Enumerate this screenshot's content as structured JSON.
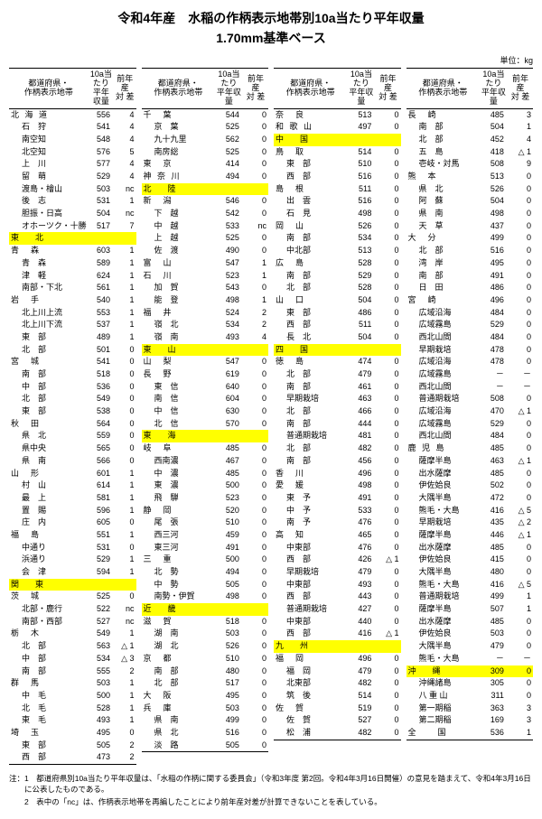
{
  "title": "令和4年産　水稲の作柄表示地帯別10a当たり平年収量",
  "subtitle": "1.70mm基準ベース",
  "unit": "単位：kg",
  "header": {
    "name": "都道府県・\n作柄表示地帯",
    "yield": "10a当たり\n平年収量",
    "diff": "前年産\n対 差"
  },
  "columns": [
    [
      {
        "n": "北 海 道",
        "y": "556",
        "d": "4",
        "pref": 1
      },
      {
        "n": "石　狩",
        "y": "541",
        "d": "4",
        "i": 1
      },
      {
        "n": "南空知",
        "y": "548",
        "d": "4",
        "i": 1
      },
      {
        "n": "北空知",
        "y": "576",
        "d": "5",
        "i": 1
      },
      {
        "n": "上　川",
        "y": "577",
        "d": "4",
        "i": 1
      },
      {
        "n": "留　萌",
        "y": "529",
        "d": "4",
        "i": 1
      },
      {
        "n": "渡島・檜山",
        "y": "503",
        "d": "nc",
        "i": 1
      },
      {
        "n": "後　志",
        "y": "531",
        "d": "1",
        "i": 1
      },
      {
        "n": "胆振・日高",
        "y": "504",
        "d": "nc",
        "i": 1
      },
      {
        "n": "オホーツク・十勝",
        "y": "517",
        "d": "7",
        "i": 1
      },
      {
        "n": "東　　北",
        "y": "",
        "d": "",
        "hl": 1
      },
      {
        "n": "青　森",
        "y": "603",
        "d": "1",
        "pref": 1
      },
      {
        "n": "青　森",
        "y": "589",
        "d": "1",
        "i": 1
      },
      {
        "n": "津　軽",
        "y": "624",
        "d": "1",
        "i": 1
      },
      {
        "n": "南部・下北",
        "y": "561",
        "d": "1",
        "i": 1
      },
      {
        "n": "岩　手",
        "y": "540",
        "d": "1",
        "pref": 1
      },
      {
        "n": "北上川上流",
        "y": "553",
        "d": "1",
        "i": 1
      },
      {
        "n": "北上川下流",
        "y": "537",
        "d": "1",
        "i": 1
      },
      {
        "n": "東　部",
        "y": "489",
        "d": "1",
        "i": 1
      },
      {
        "n": "北　部",
        "y": "501",
        "d": "0",
        "i": 1
      },
      {
        "n": "宮　城",
        "y": "541",
        "d": "0",
        "pref": 1
      },
      {
        "n": "南　部",
        "y": "518",
        "d": "0",
        "i": 1
      },
      {
        "n": "中　部",
        "y": "536",
        "d": "0",
        "i": 1
      },
      {
        "n": "北　部",
        "y": "549",
        "d": "0",
        "i": 1
      },
      {
        "n": "東　部",
        "y": "538",
        "d": "0",
        "i": 1
      },
      {
        "n": "秋　田",
        "y": "564",
        "d": "0",
        "pref": 1
      },
      {
        "n": "県　北",
        "y": "559",
        "d": "0",
        "i": 1
      },
      {
        "n": "県中央",
        "y": "565",
        "d": "0",
        "i": 1
      },
      {
        "n": "県　南",
        "y": "566",
        "d": "0",
        "i": 1
      },
      {
        "n": "山　形",
        "y": "601",
        "d": "1",
        "pref": 1
      },
      {
        "n": "村　山",
        "y": "614",
        "d": "1",
        "i": 1
      },
      {
        "n": "最　上",
        "y": "581",
        "d": "1",
        "i": 1
      },
      {
        "n": "置　賜",
        "y": "596",
        "d": "1",
        "i": 1
      },
      {
        "n": "庄　内",
        "y": "605",
        "d": "0",
        "i": 1
      },
      {
        "n": "福　島",
        "y": "551",
        "d": "1",
        "pref": 1
      },
      {
        "n": "中通り",
        "y": "531",
        "d": "0",
        "i": 1
      },
      {
        "n": "浜通り",
        "y": "529",
        "d": "1",
        "i": 1
      },
      {
        "n": "会　津",
        "y": "594",
        "d": "1",
        "i": 1
      },
      {
        "n": "関　　東",
        "y": "",
        "d": "",
        "hl": 1
      },
      {
        "n": "茨　城",
        "y": "525",
        "d": "0",
        "pref": 1
      },
      {
        "n": "北部・鹿行",
        "y": "522",
        "d": "nc",
        "i": 1
      },
      {
        "n": "南部・西部",
        "y": "527",
        "d": "nc",
        "i": 1
      },
      {
        "n": "栃　木",
        "y": "549",
        "d": "1",
        "pref": 1
      },
      {
        "n": "北　部",
        "y": "563",
        "d": "△ 1",
        "i": 1
      },
      {
        "n": "中　部",
        "y": "534",
        "d": "△ 3",
        "i": 1
      },
      {
        "n": "南　部",
        "y": "555",
        "d": "2",
        "i": 1
      },
      {
        "n": "群　馬",
        "y": "503",
        "d": "1",
        "pref": 1
      },
      {
        "n": "中　毛",
        "y": "500",
        "d": "1",
        "i": 1
      },
      {
        "n": "北　毛",
        "y": "528",
        "d": "1",
        "i": 1
      },
      {
        "n": "東　毛",
        "y": "493",
        "d": "1",
        "i": 1
      },
      {
        "n": "埼　玉",
        "y": "495",
        "d": "0",
        "pref": 1
      },
      {
        "n": "東　部",
        "y": "505",
        "d": "2",
        "i": 1
      },
      {
        "n": "西　部",
        "y": "473",
        "d": "2",
        "i": 1,
        "last": 1
      }
    ],
    [
      {
        "n": "千　葉",
        "y": "544",
        "d": "0",
        "pref": 1
      },
      {
        "n": "京　葉",
        "y": "525",
        "d": "0",
        "i": 1
      },
      {
        "n": "九十九里",
        "y": "562",
        "d": "0",
        "i": 1
      },
      {
        "n": "南房総",
        "y": "525",
        "d": "0",
        "i": 1
      },
      {
        "n": "東　京",
        "y": "414",
        "d": "0",
        "pref": 1
      },
      {
        "n": "神 奈 川",
        "y": "494",
        "d": "0",
        "pref": 1
      },
      {
        "n": "北　　陸",
        "y": "",
        "d": "",
        "hl": 1
      },
      {
        "n": "新　潟",
        "y": "546",
        "d": "0",
        "pref": 1
      },
      {
        "n": "下　越",
        "y": "542",
        "d": "0",
        "i": 1
      },
      {
        "n": "中　越",
        "y": "533",
        "d": "nc",
        "i": 1
      },
      {
        "n": "上　越",
        "y": "525",
        "d": "0",
        "i": 1
      },
      {
        "n": "佐　渡",
        "y": "490",
        "d": "0",
        "i": 1
      },
      {
        "n": "富　山",
        "y": "547",
        "d": "1",
        "pref": 1
      },
      {
        "n": "石　川",
        "y": "523",
        "d": "1",
        "pref": 1
      },
      {
        "n": "加　賀",
        "y": "543",
        "d": "0",
        "i": 1
      },
      {
        "n": "能　登",
        "y": "498",
        "d": "1",
        "i": 1
      },
      {
        "n": "福　井",
        "y": "524",
        "d": "2",
        "pref": 1
      },
      {
        "n": "嶺　北",
        "y": "534",
        "d": "2",
        "i": 1
      },
      {
        "n": "嶺　南",
        "y": "493",
        "d": "4",
        "i": 1
      },
      {
        "n": "東　　山",
        "y": "",
        "d": "",
        "hl": 1
      },
      {
        "n": "山　梨",
        "y": "547",
        "d": "0",
        "pref": 1
      },
      {
        "n": "長　野",
        "y": "619",
        "d": "0",
        "pref": 1
      },
      {
        "n": "東　信",
        "y": "640",
        "d": "0",
        "i": 1
      },
      {
        "n": "南　信",
        "y": "604",
        "d": "0",
        "i": 1
      },
      {
        "n": "中　信",
        "y": "630",
        "d": "0",
        "i": 1
      },
      {
        "n": "北　信",
        "y": "570",
        "d": "0",
        "i": 1
      },
      {
        "n": "東　　海",
        "y": "",
        "d": "",
        "hl": 1
      },
      {
        "n": "岐　阜",
        "y": "485",
        "d": "0",
        "pref": 1
      },
      {
        "n": "西南濃",
        "y": "467",
        "d": "0",
        "i": 1
      },
      {
        "n": "中　濃",
        "y": "485",
        "d": "0",
        "i": 1
      },
      {
        "n": "東　濃",
        "y": "500",
        "d": "0",
        "i": 1
      },
      {
        "n": "飛　騨",
        "y": "523",
        "d": "0",
        "i": 1
      },
      {
        "n": "静　岡",
        "y": "520",
        "d": "0",
        "pref": 1
      },
      {
        "n": "尾　張",
        "y": "510",
        "d": "0",
        "i": 1
      },
      {
        "n": "西三河",
        "y": "459",
        "d": "0",
        "i": 1
      },
      {
        "n": "東三河",
        "y": "491",
        "d": "0",
        "i": 1
      },
      {
        "n": "三　重",
        "y": "500",
        "d": "0",
        "pref": 1
      },
      {
        "n": "北　勢",
        "y": "494",
        "d": "0",
        "i": 1
      },
      {
        "n": "中　勢",
        "y": "505",
        "d": "0",
        "i": 1
      },
      {
        "n": "南勢・伊賀",
        "y": "498",
        "d": "0",
        "i": 1
      },
      {
        "n": "近　　畿",
        "y": "",
        "d": "",
        "hl": 1
      },
      {
        "n": "滋　賀",
        "y": "518",
        "d": "0",
        "pref": 1
      },
      {
        "n": "湖　南",
        "y": "503",
        "d": "0",
        "i": 1
      },
      {
        "n": "湖　北",
        "y": "526",
        "d": "0",
        "i": 1
      },
      {
        "n": "京　都",
        "y": "510",
        "d": "0",
        "pref": 1
      },
      {
        "n": "南　部",
        "y": "480",
        "d": "0",
        "i": 1
      },
      {
        "n": "北　部",
        "y": "517",
        "d": "0",
        "i": 1
      },
      {
        "n": "大　阪",
        "y": "495",
        "d": "0",
        "pref": 1
      },
      {
        "n": "兵　庫",
        "y": "503",
        "d": "0",
        "pref": 1
      },
      {
        "n": "県　南",
        "y": "499",
        "d": "0",
        "i": 1
      },
      {
        "n": "県　北",
        "y": "516",
        "d": "0",
        "i": 1
      },
      {
        "n": "淡　路",
        "y": "505",
        "d": "0",
        "i": 1,
        "last": 1
      }
    ],
    [
      {
        "n": "奈　良",
        "y": "513",
        "d": "0",
        "pref": 1
      },
      {
        "n": "和 歌 山",
        "y": "497",
        "d": "0",
        "pref": 1
      },
      {
        "n": "中　　国",
        "y": "",
        "d": "",
        "hl": 1
      },
      {
        "n": "鳥　取",
        "y": "514",
        "d": "0",
        "pref": 1
      },
      {
        "n": "東　部",
        "y": "510",
        "d": "0",
        "i": 1
      },
      {
        "n": "西　部",
        "y": "516",
        "d": "0",
        "i": 1
      },
      {
        "n": "島　根",
        "y": "511",
        "d": "0",
        "pref": 1
      },
      {
        "n": "出　雲",
        "y": "516",
        "d": "0",
        "i": 1
      },
      {
        "n": "石　見",
        "y": "498",
        "d": "0",
        "i": 1
      },
      {
        "n": "岡　山",
        "y": "526",
        "d": "0",
        "pref": 1
      },
      {
        "n": "南　部",
        "y": "534",
        "d": "0",
        "i": 1
      },
      {
        "n": "中北部",
        "y": "513",
        "d": "0",
        "i": 1
      },
      {
        "n": "広　島",
        "y": "528",
        "d": "0",
        "pref": 1
      },
      {
        "n": "南　部",
        "y": "529",
        "d": "0",
        "i": 1
      },
      {
        "n": "北　部",
        "y": "528",
        "d": "0",
        "i": 1
      },
      {
        "n": "山　口",
        "y": "504",
        "d": "0",
        "pref": 1
      },
      {
        "n": "東　部",
        "y": "486",
        "d": "0",
        "i": 1
      },
      {
        "n": "西　部",
        "y": "511",
        "d": "0",
        "i": 1
      },
      {
        "n": "長　北",
        "y": "504",
        "d": "0",
        "i": 1
      },
      {
        "n": "四　　国",
        "y": "",
        "d": "",
        "hl": 1
      },
      {
        "n": "徳　島",
        "y": "474",
        "d": "0",
        "pref": 1
      },
      {
        "n": "北　部",
        "y": "479",
        "d": "0",
        "i": 1
      },
      {
        "n": "南　部",
        "y": "461",
        "d": "0",
        "i": 1
      },
      {
        "n": "早期栽培",
        "y": "463",
        "d": "0",
        "i": 1
      },
      {
        "n": "北　部",
        "y": "466",
        "d": "0",
        "i": 1
      },
      {
        "n": "南　部",
        "y": "444",
        "d": "0",
        "i": 1
      },
      {
        "n": "普通期栽培",
        "y": "481",
        "d": "0",
        "i": 1
      },
      {
        "n": "北　部",
        "y": "482",
        "d": "0",
        "i": 1
      },
      {
        "n": "南　部",
        "y": "456",
        "d": "0",
        "i": 1
      },
      {
        "n": "香　川",
        "y": "496",
        "d": "0",
        "pref": 1
      },
      {
        "n": "愛　媛",
        "y": "498",
        "d": "0",
        "pref": 1
      },
      {
        "n": "東　予",
        "y": "491",
        "d": "0",
        "i": 1
      },
      {
        "n": "中　予",
        "y": "533",
        "d": "0",
        "i": 1
      },
      {
        "n": "南　予",
        "y": "476",
        "d": "0",
        "i": 1
      },
      {
        "n": "高　知",
        "y": "465",
        "d": "0",
        "pref": 1
      },
      {
        "n": "中東部",
        "y": "476",
        "d": "0",
        "i": 1
      },
      {
        "n": "西　部",
        "y": "426",
        "d": "△ 1",
        "i": 1
      },
      {
        "n": "早期栽培",
        "y": "479",
        "d": "0",
        "i": 1
      },
      {
        "n": "中東部",
        "y": "493",
        "d": "0",
        "i": 1
      },
      {
        "n": "西　部",
        "y": "443",
        "d": "0",
        "i": 1
      },
      {
        "n": "普通期栽培",
        "y": "427",
        "d": "0",
        "i": 1
      },
      {
        "n": "中東部",
        "y": "440",
        "d": "0",
        "i": 1
      },
      {
        "n": "西　部",
        "y": "416",
        "d": "△ 1",
        "i": 1
      },
      {
        "n": "九　　州",
        "y": "",
        "d": "",
        "hl": 1
      },
      {
        "n": "福　岡",
        "y": "496",
        "d": "0",
        "pref": 1
      },
      {
        "n": "福　岡",
        "y": "479",
        "d": "0",
        "i": 1
      },
      {
        "n": "北東部",
        "y": "482",
        "d": "0",
        "i": 1
      },
      {
        "n": "筑　後",
        "y": "514",
        "d": "0",
        "i": 1
      },
      {
        "n": "佐　賀",
        "y": "519",
        "d": "0",
        "pref": 1
      },
      {
        "n": "佐　賀",
        "y": "527",
        "d": "0",
        "i": 1
      },
      {
        "n": "松　浦",
        "y": "482",
        "d": "0",
        "i": 1,
        "last": 1
      }
    ],
    [
      {
        "n": "長　崎",
        "y": "485",
        "d": "3",
        "pref": 1
      },
      {
        "n": "南　部",
        "y": "504",
        "d": "1",
        "i": 1
      },
      {
        "n": "北　部",
        "y": "452",
        "d": "4",
        "i": 1
      },
      {
        "n": "五　島",
        "y": "418",
        "d": "△ 1",
        "i": 1
      },
      {
        "n": "壱岐・対馬",
        "y": "508",
        "d": "9",
        "i": 1
      },
      {
        "n": "熊　本",
        "y": "513",
        "d": "0",
        "pref": 1
      },
      {
        "n": "県　北",
        "y": "526",
        "d": "0",
        "i": 1
      },
      {
        "n": "阿　蘇",
        "y": "504",
        "d": "0",
        "i": 1
      },
      {
        "n": "県　南",
        "y": "498",
        "d": "0",
        "i": 1
      },
      {
        "n": "天　草",
        "y": "437",
        "d": "0",
        "i": 1
      },
      {
        "n": "大　分",
        "y": "499",
        "d": "0",
        "pref": 1
      },
      {
        "n": "北　部",
        "y": "516",
        "d": "0",
        "i": 1
      },
      {
        "n": "湾　岸",
        "y": "495",
        "d": "0",
        "i": 1
      },
      {
        "n": "南　部",
        "y": "491",
        "d": "0",
        "i": 1
      },
      {
        "n": "日　田",
        "y": "486",
        "d": "0",
        "i": 1
      },
      {
        "n": "宮　崎",
        "y": "496",
        "d": "0",
        "pref": 1
      },
      {
        "n": "広域沿海",
        "y": "484",
        "d": "0",
        "i": 1
      },
      {
        "n": "広域霧島",
        "y": "529",
        "d": "0",
        "i": 1
      },
      {
        "n": "西北山間",
        "y": "484",
        "d": "0",
        "i": 1
      },
      {
        "n": "早期栽培",
        "y": "478",
        "d": "0",
        "i": 1
      },
      {
        "n": "広域沿海",
        "y": "478",
        "d": "0",
        "i": 1
      },
      {
        "n": "広域霧島",
        "y": "－",
        "d": "－",
        "i": 1
      },
      {
        "n": "西北山間",
        "y": "－",
        "d": "－",
        "i": 1
      },
      {
        "n": "普通期栽培",
        "y": "508",
        "d": "0",
        "i": 1
      },
      {
        "n": "広域沿海",
        "y": "470",
        "d": "△ 1",
        "i": 1
      },
      {
        "n": "広域霧島",
        "y": "529",
        "d": "0",
        "i": 1
      },
      {
        "n": "西北山間",
        "y": "484",
        "d": "0",
        "i": 1
      },
      {
        "n": "鹿 児 島",
        "y": "485",
        "d": "0",
        "pref": 1
      },
      {
        "n": "薩摩半島",
        "y": "463",
        "d": "△ 1",
        "i": 1
      },
      {
        "n": "出水薩摩",
        "y": "485",
        "d": "0",
        "i": 1
      },
      {
        "n": "伊佐姶良",
        "y": "502",
        "d": "0",
        "i": 1
      },
      {
        "n": "大隅半島",
        "y": "472",
        "d": "0",
        "i": 1
      },
      {
        "n": "熊毛・大島",
        "y": "416",
        "d": "△ 5",
        "i": 1
      },
      {
        "n": "早期栽培",
        "y": "435",
        "d": "△ 2",
        "i": 1
      },
      {
        "n": "薩摩半島",
        "y": "446",
        "d": "△ 1",
        "i": 1
      },
      {
        "n": "出水薩摩",
        "y": "485",
        "d": "0",
        "i": 1
      },
      {
        "n": "伊佐姶良",
        "y": "415",
        "d": "0",
        "i": 1
      },
      {
        "n": "大隅半島",
        "y": "480",
        "d": "0",
        "i": 1
      },
      {
        "n": "熊毛・大島",
        "y": "416",
        "d": "△ 5",
        "i": 1
      },
      {
        "n": "普通期栽培",
        "y": "499",
        "d": "1",
        "i": 1
      },
      {
        "n": "薩摩半島",
        "y": "507",
        "d": "1",
        "i": 1
      },
      {
        "n": "出水薩摩",
        "y": "485",
        "d": "0",
        "i": 1
      },
      {
        "n": "伊佐姶良",
        "y": "503",
        "d": "0",
        "i": 1
      },
      {
        "n": "大隅半島",
        "y": "479",
        "d": "0",
        "i": 1
      },
      {
        "n": "熊毛・大島",
        "y": "－",
        "d": "－",
        "i": 1
      },
      {
        "n": "沖　　縄",
        "y": "309",
        "d": "0",
        "hl": 1
      },
      {
        "n": "沖縄諸島",
        "y": "305",
        "d": "0",
        "i": 1
      },
      {
        "n": "八 重 山",
        "y": "311",
        "d": "0",
        "i": 1
      },
      {
        "n": "第一期稲",
        "y": "363",
        "d": "3",
        "i": 1
      },
      {
        "n": "第二期稲",
        "y": "169",
        "d": "3",
        "i": 1
      },
      {
        "n": "全　　国",
        "y": "536",
        "d": "1",
        "pref": 1,
        "last": 1
      }
    ]
  ],
  "notes": [
    "注：1　都道府県別10a当たり平年収量は、「水稲の作柄に関する委員会」（令和3年度 第2回。令和4年3月16日開催）の意見を踏まえて、令和4年3月16日に公表したものである。",
    "　　2　表中の「nc」は、作柄表示地帯を再編したことにより前年産対差が計算できないことを表している。"
  ]
}
